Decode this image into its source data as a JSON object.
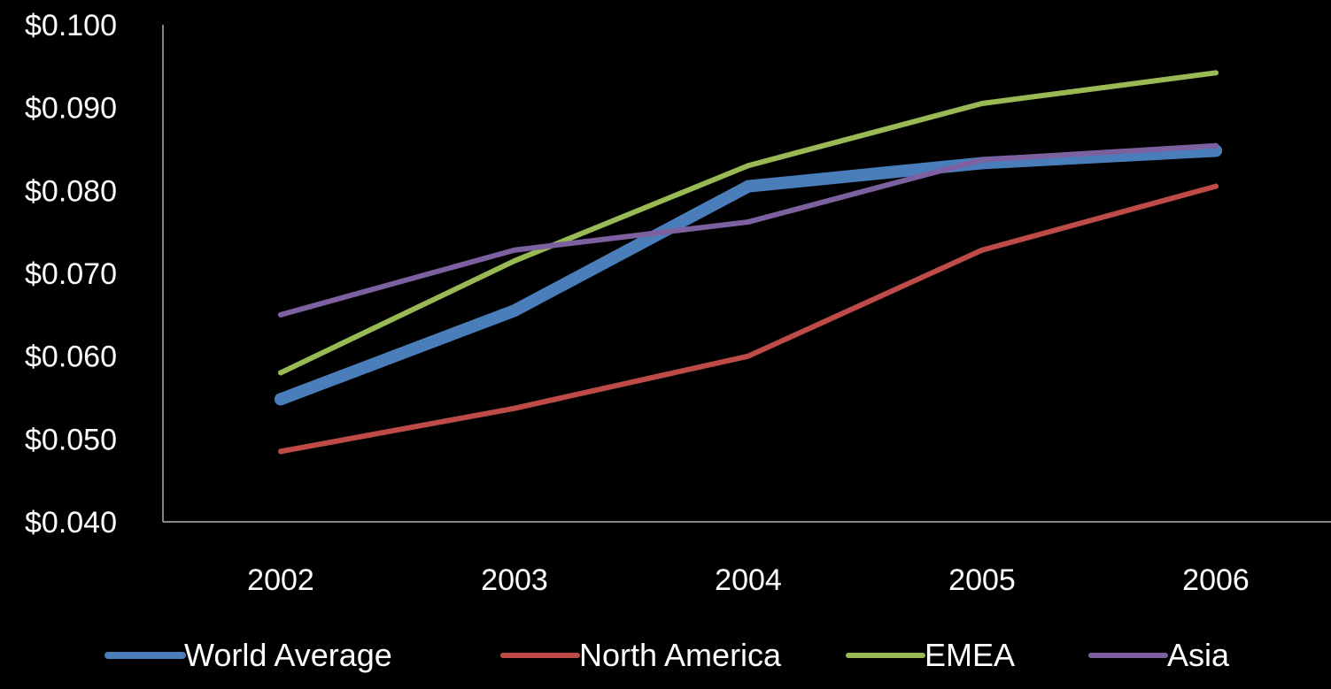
{
  "chart_data": {
    "type": "line",
    "title": "",
    "xlabel": "",
    "ylabel": "",
    "categories": [
      "2002",
      "2003",
      "2004",
      "2005",
      "2006"
    ],
    "ylim": [
      0.04,
      0.1
    ],
    "y_ticks": [
      {
        "value": 0.1,
        "label": "$0.100"
      },
      {
        "value": 0.09,
        "label": "$0.090"
      },
      {
        "value": 0.08,
        "label": "$0.080"
      },
      {
        "value": 0.07,
        "label": "$0.070"
      },
      {
        "value": 0.06,
        "label": "$0.060"
      },
      {
        "value": 0.05,
        "label": "$0.050"
      },
      {
        "value": 0.04,
        "label": "$0.040"
      }
    ],
    "grid": false,
    "legend": "bottom",
    "series": [
      {
        "name": "World Average",
        "color": "#4a7ebb",
        "emphasis": "thick",
        "values": [
          0.0548,
          0.0655,
          0.0805,
          0.0833,
          0.0848
        ]
      },
      {
        "name": "North America",
        "color": "#be4b48",
        "emphasis": "normal",
        "values": [
          0.0485,
          0.0537,
          0.06,
          0.0728,
          0.0805
        ]
      },
      {
        "name": "EMEA",
        "color": "#98b954",
        "emphasis": "normal",
        "values": [
          0.058,
          0.0715,
          0.083,
          0.0905,
          0.0942
        ]
      },
      {
        "name": "Asia",
        "color": "#7d60a0",
        "emphasis": "normal",
        "values": [
          0.065,
          0.0728,
          0.0762,
          0.0837,
          0.0854
        ]
      }
    ]
  }
}
